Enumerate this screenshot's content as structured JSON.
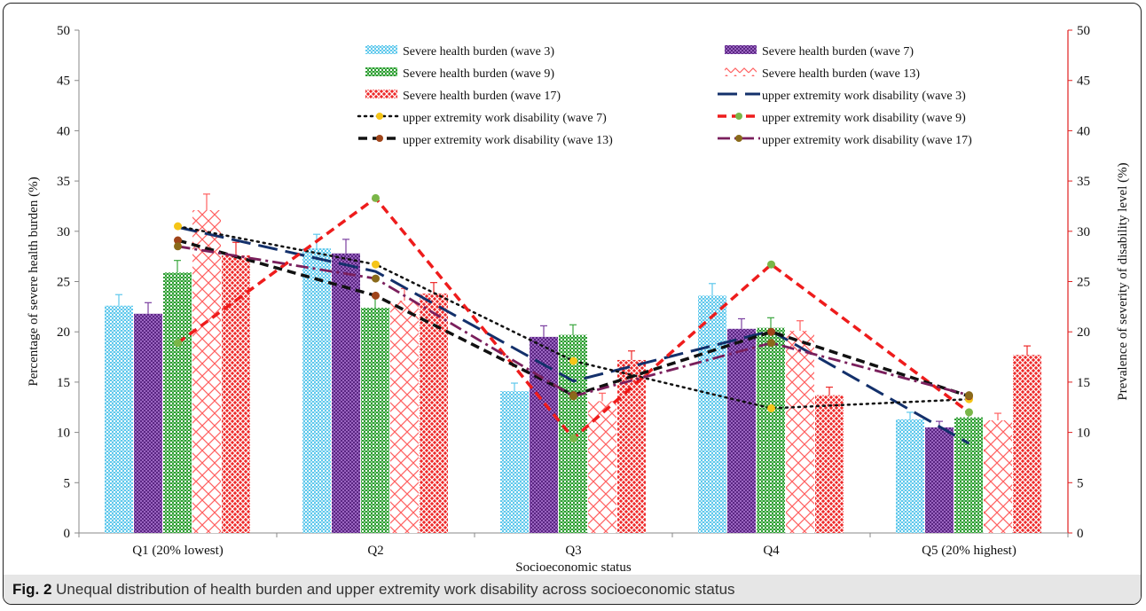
{
  "caption": {
    "label": "Fig. 2",
    "text": "Unequal distribution of health burden and upper extremity work disability across socioeconomic status"
  },
  "chart_data": {
    "type": "bar",
    "xlabel": "Socioeconomic status",
    "ylabel": "Percentage of severe health burden (%)",
    "y2label": "Prevalence of severity of disability level (%)",
    "categories": [
      "Q1 (20% lowest)",
      "Q2",
      "Q3",
      "Q4",
      "Q5 (20% highest)"
    ],
    "ylim": [
      0,
      50
    ],
    "y2lim": [
      0,
      50
    ],
    "yticks": [
      0,
      5,
      10,
      15,
      20,
      25,
      30,
      35,
      40,
      45,
      50
    ],
    "bar_series": [
      {
        "name": "Severe health burden (wave 3)",
        "color": "#5ec8ec",
        "values": [
          22.6,
          28.3,
          14.1,
          23.6,
          11.3
        ],
        "err": [
          1.1,
          1.4,
          0.8,
          1.2,
          0.7
        ]
      },
      {
        "name": "Severe health burden (wave 7)",
        "color": "#7b3fa0",
        "values": [
          21.8,
          27.8,
          19.5,
          20.3,
          10.5
        ],
        "err": [
          1.1,
          1.4,
          1.1,
          1.0,
          0.6
        ]
      },
      {
        "name": "Severe health burden (wave 9)",
        "color": "#3aa63e",
        "values": [
          25.9,
          22.4,
          19.7,
          20.4,
          11.5
        ],
        "err": [
          1.2,
          1.1,
          1.0,
          1.0,
          0.6
        ]
      },
      {
        "name": "Severe health burden (wave 13)",
        "color": "#ff6060",
        "values": [
          32.1,
          23.1,
          13.1,
          20.1,
          11.2
        ],
        "err": [
          1.6,
          1.2,
          0.8,
          1.0,
          0.7
        ]
      },
      {
        "name": "Severe health burden (wave 17)",
        "color": "#ee2a2a",
        "values": [
          27.6,
          23.8,
          17.2,
          13.7,
          17.7
        ],
        "err": [
          1.3,
          1.1,
          0.9,
          0.8,
          0.9
        ]
      }
    ],
    "line_series": [
      {
        "name": "upper extremity work disability (wave 3)",
        "color": "#13306b",
        "style": "longdash",
        "marker": null,
        "values": [
          30.4,
          26.0,
          15.1,
          20.1,
          8.9
        ]
      },
      {
        "name": "upper extremity work disability (wave 7)",
        "color": "#111111",
        "style": "dot",
        "marker": "#f5c518",
        "values": [
          30.5,
          26.7,
          17.1,
          12.4,
          13.3
        ]
      },
      {
        "name": "upper extremity work disability (wave 9)",
        "color": "#ee1c1c",
        "style": "dash",
        "marker": "#7ab648",
        "values": [
          18.9,
          33.3,
          9.4,
          26.7,
          12.0
        ]
      },
      {
        "name": "upper extremity work disability (wave 13)",
        "color": "#111111",
        "style": "dash",
        "marker": "#a0451a",
        "values": [
          29.1,
          23.6,
          13.7,
          20.0,
          13.6
        ]
      },
      {
        "name": "upper extremity work disability (wave 17)",
        "color": "#7a1f5c",
        "style": "dashdot",
        "marker": "#8a6a1a",
        "values": [
          28.5,
          25.3,
          13.6,
          18.9,
          13.7
        ]
      }
    ],
    "legend_position": "top"
  }
}
